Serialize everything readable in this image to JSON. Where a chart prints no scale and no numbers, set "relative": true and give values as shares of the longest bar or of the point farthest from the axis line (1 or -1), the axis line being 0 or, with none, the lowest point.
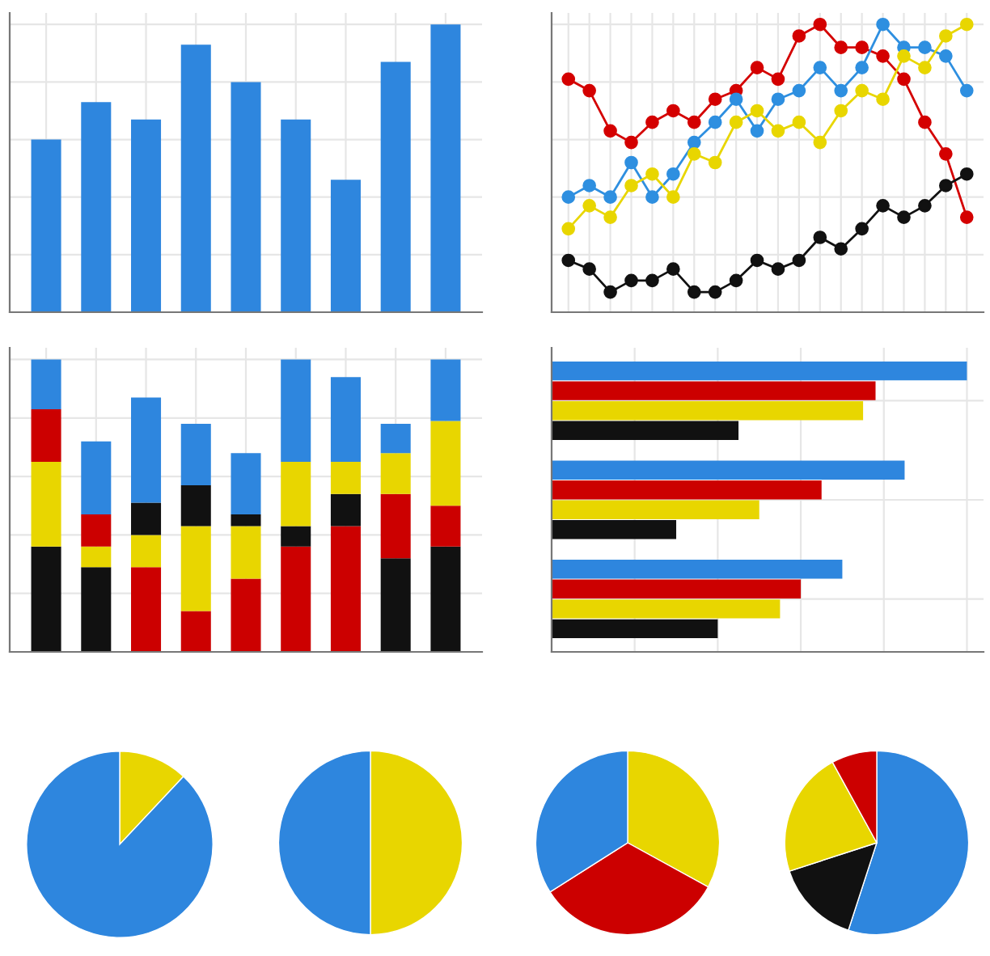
{
  "chart_data": [
    {
      "type": "bar",
      "relative": true,
      "grid": true,
      "tick_labels": false,
      "categories": [
        null,
        null,
        null,
        null,
        null,
        null,
        null,
        null,
        null
      ],
      "values": [
        0.6,
        0.73,
        0.67,
        0.93,
        0.8,
        0.67,
        0.46,
        0.87,
        1.0
      ],
      "color": "#2e86de"
    },
    {
      "type": "line",
      "relative": true,
      "grid": true,
      "tick_labels": false,
      "marker": "circle",
      "line_style": "solid",
      "categories": [
        null,
        null,
        null,
        null,
        null,
        null,
        null,
        null,
        null,
        null,
        null,
        null,
        null,
        null,
        null,
        null,
        null,
        null,
        null,
        null
      ],
      "series": [
        {
          "color": "#d40000",
          "values": [
            0.81,
            0.77,
            0.63,
            0.59,
            0.66,
            0.7,
            0.66,
            0.74,
            0.77,
            0.85,
            0.81,
            0.96,
            1.0,
            0.92,
            0.92,
            0.89,
            0.81,
            0.66,
            0.55,
            0.33
          ]
        },
        {
          "color": "#2e8fe0",
          "values": [
            0.4,
            0.44,
            0.4,
            0.52,
            0.4,
            0.48,
            0.59,
            0.66,
            0.74,
            0.63,
            0.74,
            0.77,
            0.85,
            0.77,
            0.85,
            1.0,
            0.92,
            0.92,
            0.89,
            0.77
          ]
        },
        {
          "color": "#e8d600",
          "values": [
            0.29,
            0.37,
            0.33,
            0.44,
            0.48,
            0.4,
            0.55,
            0.52,
            0.66,
            0.7,
            0.63,
            0.66,
            0.59,
            0.7,
            0.77,
            0.74,
            0.89,
            0.85,
            0.96,
            1.0
          ]
        },
        {
          "color": "#111111",
          "values": [
            0.18,
            0.15,
            0.07,
            0.11,
            0.11,
            0.15,
            0.07,
            0.07,
            0.11,
            0.18,
            0.15,
            0.18,
            0.26,
            0.22,
            0.29,
            0.37,
            0.33,
            0.37,
            0.44,
            0.48
          ]
        }
      ]
    },
    {
      "type": "bar",
      "relative": true,
      "stacked": true,
      "grid": true,
      "tick_labels": false,
      "categories": [
        null,
        null,
        null,
        null,
        null,
        null,
        null,
        null,
        null
      ],
      "series": [
        {
          "color": "#111111",
          "values": [
            0.36,
            0.29,
            null,
            null,
            null,
            null,
            null,
            0.32,
            0.36
          ]
        },
        {
          "color": "#cc0000",
          "values": [
            null,
            null,
            0.29,
            0.14,
            0.25,
            0.36,
            0.43,
            0.22,
            0.14
          ]
        },
        {
          "color": "#111111",
          "values": [
            null,
            null,
            null,
            null,
            null,
            0.07,
            0.11,
            null,
            null
          ]
        },
        {
          "color": "#e8d600",
          "values": [
            0.29,
            0.07,
            0.11,
            0.29,
            0.18,
            0.22,
            0.11,
            0.14,
            0.29
          ]
        },
        {
          "color": "#cc0000",
          "values": [
            0.18,
            0.11,
            null,
            null,
            null,
            null,
            null,
            null,
            null
          ]
        },
        {
          "color": "#111111",
          "values": [
            null,
            null,
            0.11,
            0.14,
            0.04,
            null,
            null,
            null,
            null
          ]
        },
        {
          "color": "#2e86de",
          "values": [
            0.17,
            0.25,
            0.36,
            0.21,
            0.21,
            0.35,
            0.29,
            0.1,
            0.21
          ]
        }
      ]
    },
    {
      "type": "bar",
      "relative": true,
      "orientation": "horizontal",
      "grid": true,
      "tick_labels": false,
      "categories": [
        null,
        null,
        null
      ],
      "series": [
        {
          "color": "#2e86de",
          "values": [
            1.0,
            0.85,
            0.7
          ]
        },
        {
          "color": "#cc0000",
          "values": [
            0.78,
            0.65,
            0.6
          ]
        },
        {
          "color": "#e8d600",
          "values": [
            0.75,
            0.5,
            0.55
          ]
        },
        {
          "color": "#111111",
          "values": [
            0.45,
            0.3,
            0.4
          ]
        }
      ]
    },
    {
      "type": "pie",
      "categories": [
        null,
        null
      ],
      "values": [
        12,
        88
      ],
      "colors": [
        "#e8d600",
        "#2e86de"
      ]
    },
    {
      "type": "pie",
      "categories": [
        null,
        null
      ],
      "values": [
        50,
        50
      ],
      "colors": [
        "#e8d600",
        "#2e86de"
      ]
    },
    {
      "type": "pie",
      "categories": [
        null,
        null,
        null
      ],
      "values": [
        33,
        33,
        34
      ],
      "colors": [
        "#e8d600",
        "#cc0000",
        "#2e86de"
      ]
    },
    {
      "type": "pie",
      "categories": [
        null,
        null,
        null,
        null
      ],
      "values": [
        55,
        15,
        22,
        8
      ],
      "colors": [
        "#2e86de",
        "#111111",
        "#e8d600",
        "#cc0000"
      ]
    }
  ]
}
